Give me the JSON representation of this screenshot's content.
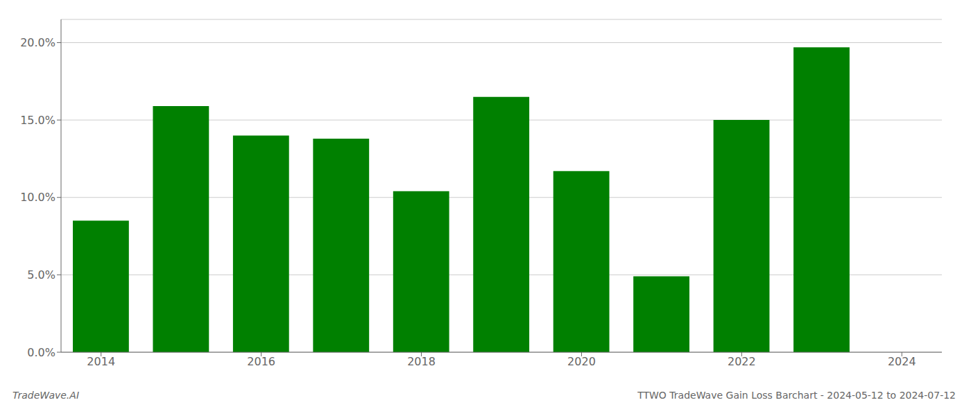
{
  "chart_data": {
    "type": "bar",
    "title": "TTWO TradeWave Gain Loss Barchart - 2024-05-12 to 2024-07-12",
    "annotations": [
      "TradeWave.AI"
    ],
    "x": [
      2014,
      2015,
      2016,
      2017,
      2018,
      2019,
      2020,
      2021,
      2022,
      2023
    ],
    "values": [
      0.085,
      0.159,
      0.14,
      0.138,
      0.104,
      0.165,
      0.117,
      0.049,
      0.15,
      0.197
    ],
    "color": "#008000",
    "xlim": [
      2013.5,
      2024.5
    ],
    "xticks": [
      2014,
      2016,
      2018,
      2020,
      2022,
      2024
    ],
    "ylim": [
      0,
      0.215
    ],
    "yticks": [
      {
        "value": 0.0,
        "label": "0.0%"
      },
      {
        "value": 0.05,
        "label": "5.0%"
      },
      {
        "value": 0.1,
        "label": "10.0%"
      },
      {
        "value": 0.15,
        "label": "15.0%"
      },
      {
        "value": 0.2,
        "label": "20.0%"
      }
    ],
    "grid": true
  }
}
